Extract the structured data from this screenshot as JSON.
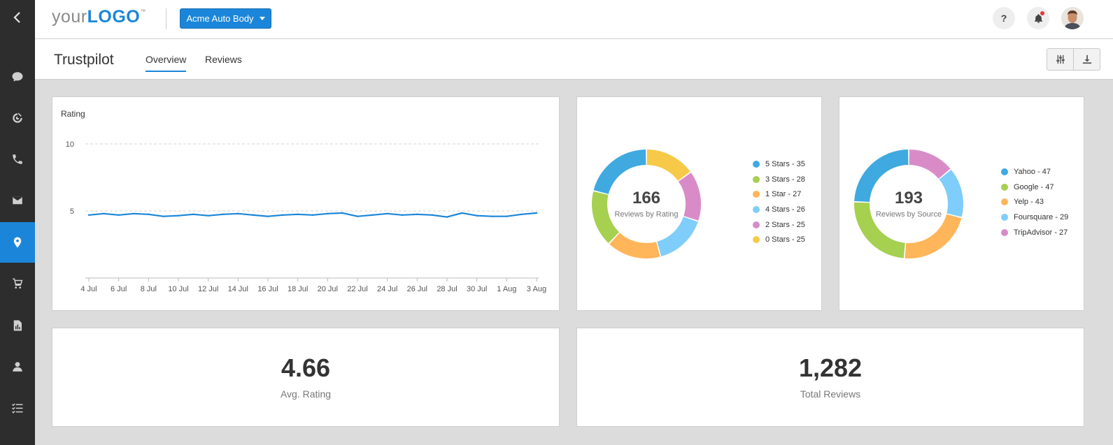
{
  "header": {
    "logo": {
      "prefix": "your",
      "brand": "LOGO",
      "tm": "™"
    },
    "client_selector": "Acme Auto Body",
    "help_label": "?"
  },
  "page": {
    "title": "Trustpilot",
    "tabs": [
      {
        "label": "Overview",
        "active": true
      },
      {
        "label": "Reviews",
        "active": false
      }
    ]
  },
  "sidebar": {
    "items": [
      {
        "icon": "chat-icon"
      },
      {
        "icon": "target-icon"
      },
      {
        "icon": "phone-icon"
      },
      {
        "icon": "mail-icon"
      },
      {
        "icon": "location-pin-icon",
        "active": true
      },
      {
        "icon": "cart-icon"
      },
      {
        "icon": "report-icon"
      },
      {
        "icon": "user-icon"
      },
      {
        "icon": "tasks-icon"
      }
    ]
  },
  "rating_chart": {
    "title": "Rating",
    "chart_data": {
      "type": "line",
      "x": [
        "4 Jul",
        "5 Jul",
        "6 Jul",
        "7 Jul",
        "8 Jul",
        "9 Jul",
        "10 Jul",
        "11 Jul",
        "12 Jul",
        "13 Jul",
        "14 Jul",
        "15 Jul",
        "16 Jul",
        "17 Jul",
        "18 Jul",
        "19 Jul",
        "20 Jul",
        "21 Jul",
        "22 Jul",
        "23 Jul",
        "24 Jul",
        "25 Jul",
        "26 Jul",
        "27 Jul",
        "28 Jul",
        "29 Jul",
        "30 Jul",
        "31 Jul",
        "1 Aug",
        "2 Aug",
        "3 Aug"
      ],
      "x_tick_labels": [
        "4 Jul",
        "6 Jul",
        "8 Jul",
        "10 Jul",
        "12 Jul",
        "14 Jul",
        "16 Jul",
        "18 Jul",
        "20 Jul",
        "22 Jul",
        "24 Jul",
        "26 Jul",
        "28 Jul",
        "30 Jul",
        "1 Aug",
        "3 Aug"
      ],
      "y": [
        4.7,
        4.8,
        4.7,
        4.8,
        4.75,
        4.6,
        4.65,
        4.75,
        4.65,
        4.75,
        4.8,
        4.7,
        4.6,
        4.7,
        4.75,
        4.7,
        4.8,
        4.85,
        4.6,
        4.7,
        4.8,
        4.7,
        4.75,
        4.7,
        4.55,
        4.85,
        4.65,
        4.6,
        4.6,
        4.75,
        4.85
      ],
      "y_ticks": [
        5,
        10
      ],
      "ylim": [
        0,
        10
      ],
      "grid": true,
      "color": "#1b86d9"
    }
  },
  "rating_donut": {
    "total": "166",
    "label": "Reviews by Rating",
    "chart_data": {
      "type": "pie",
      "categories": [
        "5 Stars",
        "3 Stars",
        "1 Star",
        "4 Stars",
        "2 Stars",
        "0 Stars"
      ],
      "values": [
        35,
        28,
        27,
        26,
        25,
        25
      ],
      "legend_labels": [
        "5 Stars - 35",
        "3 Stars - 28",
        "1 Star - 27",
        "4 Stars - 26",
        "2 Stars - 25",
        "0 Stars - 25"
      ],
      "colors": [
        "#3fa9e0",
        "#a6d050",
        "#ffb55a",
        "#7fcdfa",
        "#d98bc8",
        "#f7c948"
      ],
      "draw_order": [
        5,
        4,
        3,
        2,
        1,
        0
      ],
      "legend": "right"
    }
  },
  "source_donut": {
    "total": "193",
    "label": "Reviews by Source",
    "chart_data": {
      "type": "pie",
      "categories": [
        "Yahoo",
        "Google",
        "Yelp",
        "Foursquare",
        "TripAdvisor"
      ],
      "values": [
        47,
        47,
        43,
        29,
        27
      ],
      "legend_labels": [
        "Yahoo - 47",
        "Google - 47",
        "Yelp - 43",
        "Foursquare - 29",
        "TripAdvisor - 27"
      ],
      "colors": [
        "#3fa9e0",
        "#a6d050",
        "#ffb55a",
        "#7fcdfa",
        "#d98bc8"
      ],
      "draw_order": [
        4,
        3,
        2,
        1,
        0
      ],
      "legend": "right"
    }
  },
  "stats": {
    "avg_rating": {
      "value": "4.66",
      "label": "Avg. Rating"
    },
    "total_reviews": {
      "value": "1,282",
      "label": "Total Reviews"
    }
  }
}
